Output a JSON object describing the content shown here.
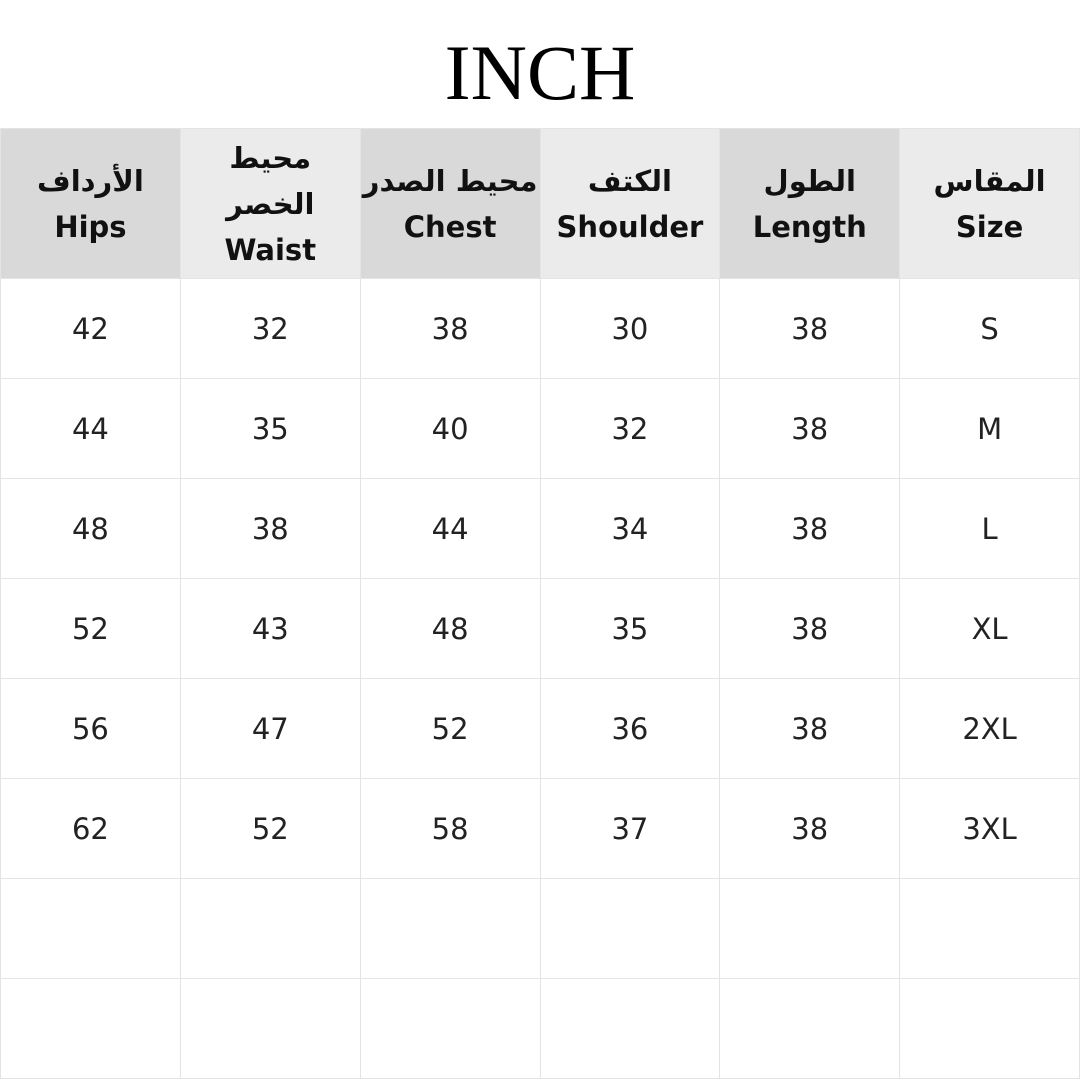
{
  "title": "INCH",
  "header_colors": {
    "dark": "#d9d9d9",
    "light": "#ebebeb"
  },
  "columns": [
    {
      "ar": "المقاس",
      "en": "Size"
    },
    {
      "ar": "الطول",
      "en": "Length"
    },
    {
      "ar": "الكتف",
      "en": "Shoulder"
    },
    {
      "ar": "محيط الصدر",
      "en": "Chest"
    },
    {
      "ar": "محيط الخصر",
      "en": "Waist"
    },
    {
      "ar": "الأرداف",
      "en": "Hips"
    }
  ],
  "rows": [
    [
      "S",
      "38",
      "30",
      "38",
      "32",
      "42"
    ],
    [
      "M",
      "38",
      "32",
      "40",
      "35",
      "44"
    ],
    [
      "L",
      "38",
      "34",
      "44",
      "38",
      "48"
    ],
    [
      "XL",
      "38",
      "35",
      "48",
      "43",
      "52"
    ],
    [
      "2XL",
      "38",
      "36",
      "52",
      "47",
      "56"
    ],
    [
      "3XL",
      "38",
      "37",
      "58",
      "52",
      "62"
    ],
    [
      "",
      "",
      "",
      "",
      "",
      ""
    ],
    [
      "",
      "",
      "",
      "",
      "",
      ""
    ]
  ]
}
